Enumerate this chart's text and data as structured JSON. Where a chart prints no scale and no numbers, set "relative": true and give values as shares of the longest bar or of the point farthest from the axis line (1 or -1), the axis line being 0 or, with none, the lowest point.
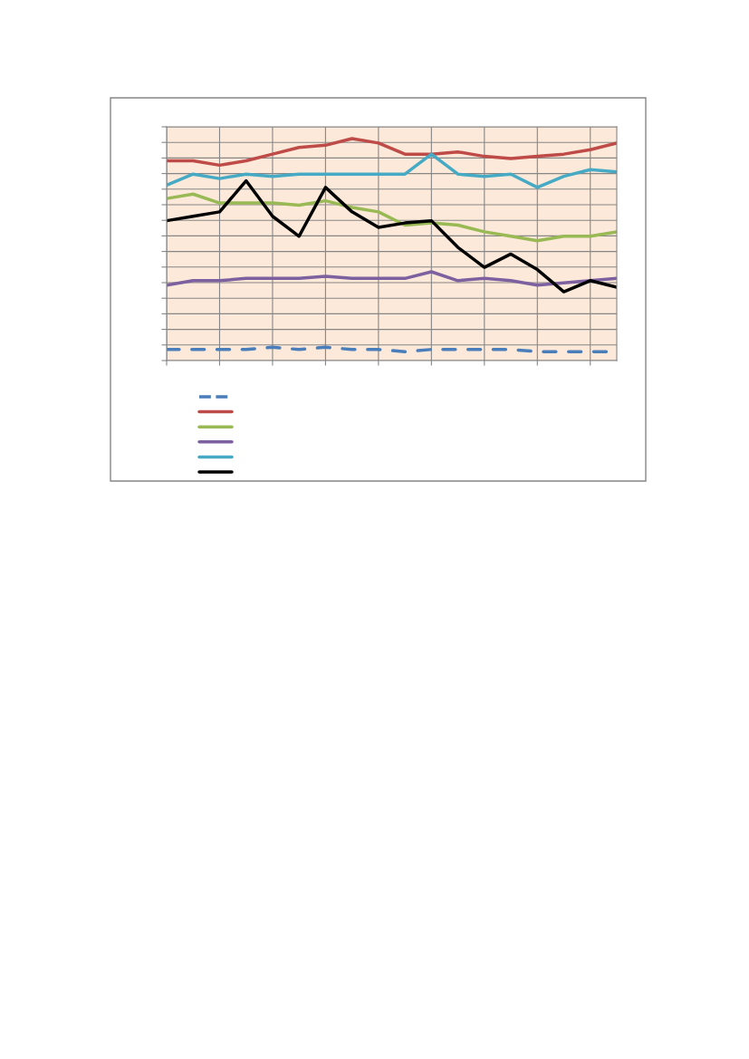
{
  "chart_data": {
    "type": "line",
    "relative": true,
    "grid": true,
    "categories": [
      null,
      null,
      null,
      null,
      null,
      null,
      null,
      null,
      null,
      null,
      null,
      null,
      null,
      null,
      null,
      null,
      null,
      null
    ],
    "series": [
      {
        "color": "#4a7ebb",
        "line_style": "dashed",
        "values": [
          0.05,
          0.05,
          0.05,
          0.05,
          0.06,
          0.05,
          0.06,
          0.05,
          0.05,
          0.04,
          0.05,
          0.05,
          0.05,
          0.05,
          0.04,
          0.04,
          0.04,
          0.04
        ]
      },
      {
        "color": "#be4b48",
        "values": [
          0.9,
          0.9,
          0.88,
          0.9,
          0.93,
          0.96,
          0.97,
          1.0,
          0.98,
          0.93,
          0.93,
          0.94,
          0.92,
          0.91,
          0.92,
          0.93,
          0.95,
          0.98
        ]
      },
      {
        "color": "#98b954",
        "values": [
          0.73,
          0.75,
          0.71,
          0.71,
          0.71,
          0.7,
          0.72,
          0.69,
          0.67,
          0.61,
          0.62,
          0.61,
          0.58,
          0.56,
          0.54,
          0.56,
          0.56,
          0.58
        ]
      },
      {
        "color": "#7d60a0",
        "values": [
          0.34,
          0.36,
          0.36,
          0.37,
          0.37,
          0.37,
          0.38,
          0.37,
          0.37,
          0.37,
          0.4,
          0.36,
          0.37,
          0.36,
          0.34,
          0.35,
          0.36,
          0.37
        ]
      },
      {
        "color": "#46aac5",
        "values": [
          0.79,
          0.84,
          0.82,
          0.84,
          0.83,
          0.84,
          0.84,
          0.84,
          0.84,
          0.84,
          0.93,
          0.84,
          0.83,
          0.84,
          0.78,
          0.83,
          0.86,
          0.85
        ]
      },
      {
        "color": "#000000",
        "values": [
          0.63,
          0.65,
          0.67,
          0.81,
          0.65,
          0.56,
          0.78,
          0.67,
          0.6,
          0.62,
          0.63,
          0.51,
          0.42,
          0.48,
          0.41,
          0.31,
          0.36,
          0.33
        ]
      }
    ]
  }
}
